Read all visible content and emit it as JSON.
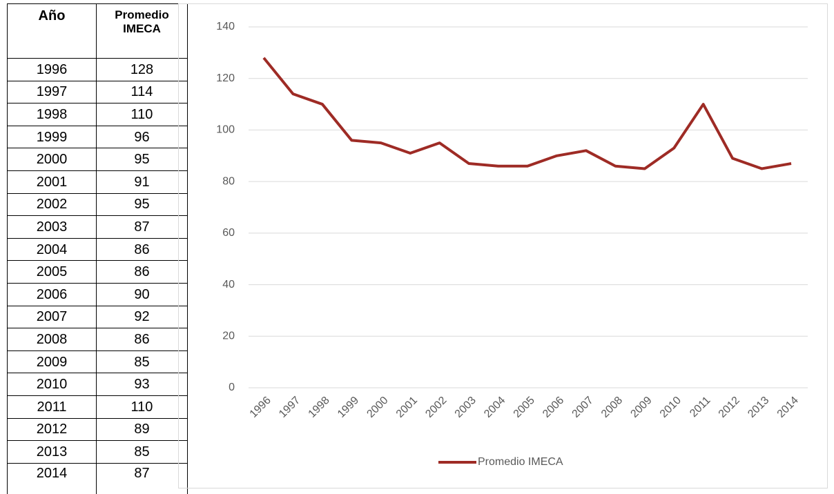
{
  "table": {
    "headers": [
      "Año",
      "Promedio IMECA"
    ]
  },
  "chart_data": {
    "type": "line",
    "categories": [
      "1996",
      "1997",
      "1998",
      "1999",
      "2000",
      "2001",
      "2002",
      "2003",
      "2004",
      "2005",
      "2006",
      "2007",
      "2008",
      "2009",
      "2010",
      "2011",
      "2012",
      "2013",
      "2014"
    ],
    "series": [
      {
        "name": "Promedio IMECA",
        "color": "#9e2b25",
        "values": [
          128,
          114,
          110,
          96,
          95,
          91,
          95,
          87,
          86,
          86,
          90,
          92,
          86,
          85,
          93,
          110,
          89,
          85,
          87
        ]
      }
    ],
    "ylim": [
      0,
      140
    ],
    "yticks": [
      0,
      20,
      40,
      60,
      80,
      100,
      120,
      140
    ],
    "grid": true,
    "legend": "bottom"
  }
}
